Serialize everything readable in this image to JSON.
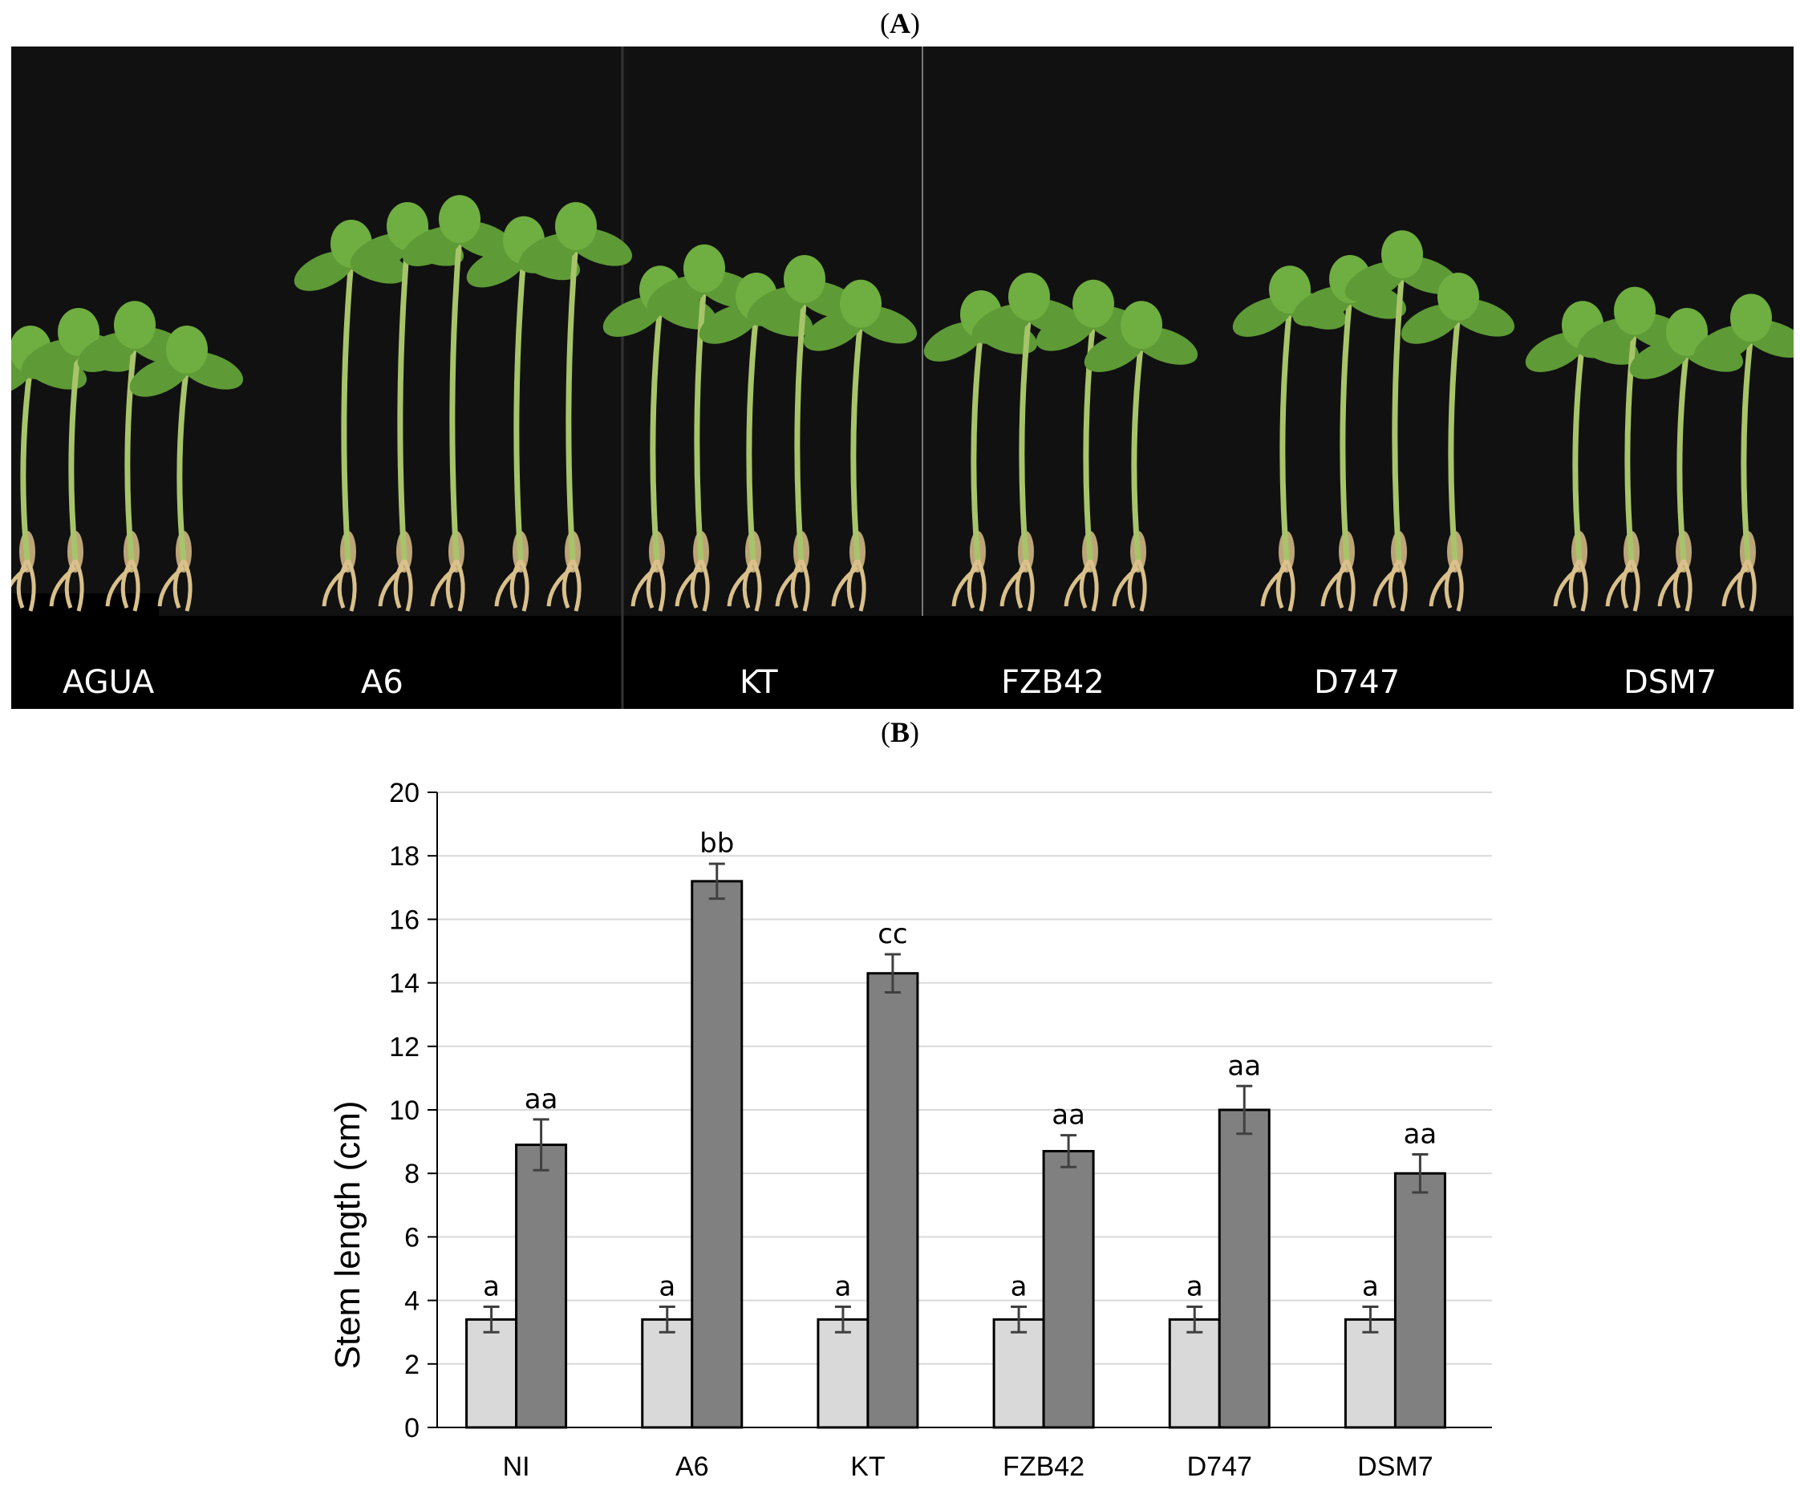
{
  "panel_a_label": "A",
  "panel_b_label": "B",
  "photo": {
    "captions": [
      "AGUA",
      "A6",
      "KT",
      "FZB42",
      "D747",
      "DSM7"
    ]
  },
  "colors": {
    "background": "#ffffff",
    "photo_background": "#111111",
    "bar_light": "#d9d9d9",
    "bar_dark": "#808080",
    "grid": "#d9d9d9",
    "plant_green": "#5e9a36",
    "stem": "#a8c46a",
    "root": "#d9c08a"
  },
  "chart_data": {
    "type": "bar",
    "categories": [
      "NI",
      "A6",
      "KT",
      "FZB42",
      "D747",
      "DSM7"
    ],
    "series": [
      {
        "values": [
          3.4,
          3.4,
          3.4,
          3.4,
          3.4,
          3.4
        ],
        "errors": [
          0.4,
          0.4,
          0.4,
          0.4,
          0.4,
          0.4
        ],
        "labels": [
          "a",
          "a",
          "a",
          "a",
          "a",
          "a"
        ],
        "color": "#d9d9d9"
      },
      {
        "values": [
          8.9,
          17.2,
          14.3,
          8.7,
          10.0,
          8.0
        ],
        "errors": [
          0.8,
          0.55,
          0.6,
          0.5,
          0.75,
          0.6
        ],
        "labels": [
          "aa",
          "bb",
          "cc",
          "aa",
          "aa",
          "aa"
        ],
        "color": "#808080"
      }
    ],
    "title": "",
    "xlabel": "",
    "ylabel": "Stem length (cm)",
    "ylim": [
      0,
      20
    ],
    "yticks": [
      0,
      2,
      4,
      6,
      8,
      10,
      12,
      14,
      16,
      18,
      20
    ],
    "grid": true,
    "legend": "none"
  }
}
